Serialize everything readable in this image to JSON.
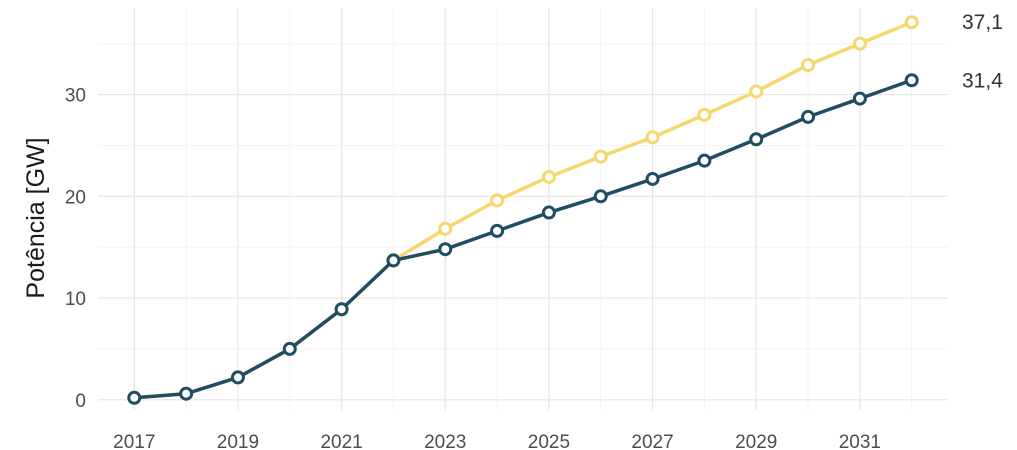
{
  "chart_data": {
    "type": "line",
    "ylabel": "Potência [GW]",
    "xlabel": "",
    "x": [
      2017,
      2018,
      2019,
      2020,
      2021,
      2022,
      2023,
      2024,
      2025,
      2026,
      2027,
      2028,
      2029,
      2030,
      2031,
      2032
    ],
    "x_ticks": [
      "2017",
      "2019",
      "2021",
      "2023",
      "2025",
      "2027",
      "2029",
      "2031"
    ],
    "y_ticks": [
      "0",
      "10",
      "20",
      "30"
    ],
    "xlim": [
      2016.3,
      2032.7
    ],
    "ylim": [
      -1,
      38.5
    ],
    "grid": true,
    "series": [
      {
        "color": "#f5d76e",
        "end_label": "37,1",
        "values": [
          0.2,
          0.6,
          2.2,
          5.0,
          8.9,
          13.7,
          16.8,
          19.6,
          21.9,
          23.9,
          25.8,
          28.0,
          30.3,
          32.9,
          35.0,
          37.1
        ]
      },
      {
        "color": "#1f4e63",
        "end_label": "31,4",
        "values": [
          0.2,
          0.6,
          2.2,
          5.0,
          8.9,
          13.7,
          14.8,
          16.6,
          18.4,
          20.0,
          21.7,
          23.5,
          25.6,
          27.8,
          29.6,
          31.4
        ]
      }
    ]
  }
}
